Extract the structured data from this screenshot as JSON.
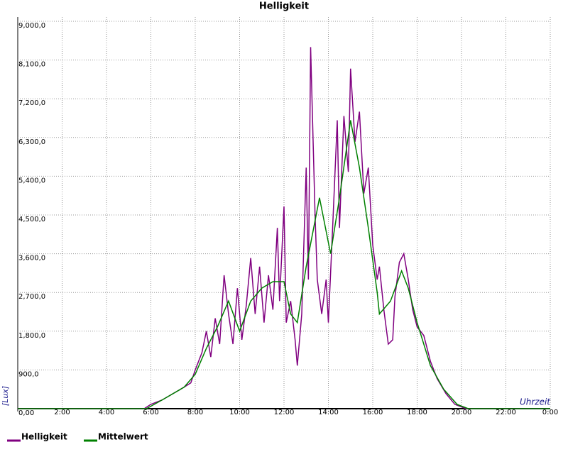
{
  "chart_data": {
    "type": "line",
    "title": "Helligkeit",
    "y_label": "[Lux]",
    "x_label": "Uhrzeit",
    "xlim": [
      0,
      24
    ],
    "xticks": [
      {
        "value": 2,
        "label": "2:00"
      },
      {
        "value": 4,
        "label": "4:00"
      },
      {
        "value": 6,
        "label": "6:00"
      },
      {
        "value": 8,
        "label": "8:00"
      },
      {
        "value": 10,
        "label": "10:00"
      },
      {
        "value": 12,
        "label": "12:00"
      },
      {
        "value": 14,
        "label": "14:00"
      },
      {
        "value": 16,
        "label": "16:00"
      },
      {
        "value": 18,
        "label": "18:00"
      },
      {
        "value": 20,
        "label": "20:00"
      },
      {
        "value": 22,
        "label": "22:00"
      },
      {
        "value": 24,
        "label": "0:00"
      }
    ],
    "ylim": [
      0,
      9000
    ],
    "yticks": [
      {
        "value": 0,
        "label": "0,00"
      },
      {
        "value": 900,
        "label": "900,0"
      },
      {
        "value": 1800,
        "label": "1,800,0"
      },
      {
        "value": 2700,
        "label": "2,700,0"
      },
      {
        "value": 3600,
        "label": "3,600,0"
      },
      {
        "value": 4500,
        "label": "4,500,0"
      },
      {
        "value": 5400,
        "label": "5,400,0"
      },
      {
        "value": 6300,
        "label": "6,300,0"
      },
      {
        "value": 7200,
        "label": "7,200,0"
      },
      {
        "value": 8100,
        "label": "8,100,0"
      },
      {
        "value": 9000,
        "label": "9,000,0"
      }
    ],
    "grid": true,
    "series": [
      {
        "name": "Helligkeit",
        "color": "#800080",
        "x": [
          0,
          5.7,
          6,
          6.5,
          7,
          7.5,
          7.8,
          8,
          8.3,
          8.5,
          8.7,
          8.9,
          9.1,
          9.3,
          9.5,
          9.7,
          9.9,
          10.1,
          10.3,
          10.5,
          10.7,
          10.9,
          11.1,
          11.3,
          11.5,
          11.7,
          11.8,
          12,
          12.1,
          12.3,
          12.5,
          12.6,
          12.8,
          13,
          13.1,
          13.2,
          13.4,
          13.5,
          13.7,
          13.9,
          14,
          14.2,
          14.4,
          14.5,
          14.7,
          14.9,
          15,
          15.2,
          15.4,
          15.6,
          15.8,
          16,
          16.2,
          16.3,
          16.5,
          16.7,
          16.9,
          17,
          17.2,
          17.4,
          17.6,
          17.8,
          18,
          18.3,
          18.6,
          18.9,
          19.3,
          19.7,
          20.2,
          24
        ],
        "values": [
          0,
          0,
          100,
          200,
          350,
          500,
          600,
          900,
          1300,
          1800,
          1200,
          2100,
          1500,
          3100,
          2200,
          1500,
          2800,
          1600,
          2400,
          3500,
          2200,
          3300,
          2000,
          3100,
          2300,
          4200,
          2500,
          4700,
          2000,
          2500,
          1600,
          1000,
          2200,
          5600,
          3000,
          8400,
          4500,
          3000,
          2200,
          3000,
          2000,
          4300,
          6700,
          4200,
          6800,
          5500,
          7900,
          6200,
          6900,
          5000,
          5600,
          3800,
          3000,
          3300,
          2300,
          1500,
          1600,
          2600,
          3400,
          3600,
          3000,
          2300,
          1900,
          1700,
          1100,
          700,
          350,
          100,
          0,
          0
        ]
      },
      {
        "name": "Mittelwert",
        "color": "#008000",
        "x": [
          0,
          5.8,
          6.5,
          7.5,
          8,
          8.5,
          9,
          9.5,
          10,
          10.5,
          11,
          11.5,
          12,
          12.3,
          12.6,
          13,
          13.6,
          14.1,
          14.5,
          15,
          15.4,
          15.8,
          16.2,
          16.3,
          16.8,
          17.3,
          17.6,
          18,
          18.6,
          19.2,
          19.8,
          20.3,
          24
        ],
        "values": [
          0,
          0,
          200,
          500,
          800,
          1400,
          1900,
          2500,
          1800,
          2500,
          2800,
          2950,
          2950,
          2200,
          2000,
          3300,
          4900,
          3600,
          4900,
          6700,
          5600,
          4200,
          2700,
          2200,
          2500,
          3200,
          2800,
          2000,
          1000,
          450,
          100,
          0,
          0
        ]
      }
    ]
  }
}
